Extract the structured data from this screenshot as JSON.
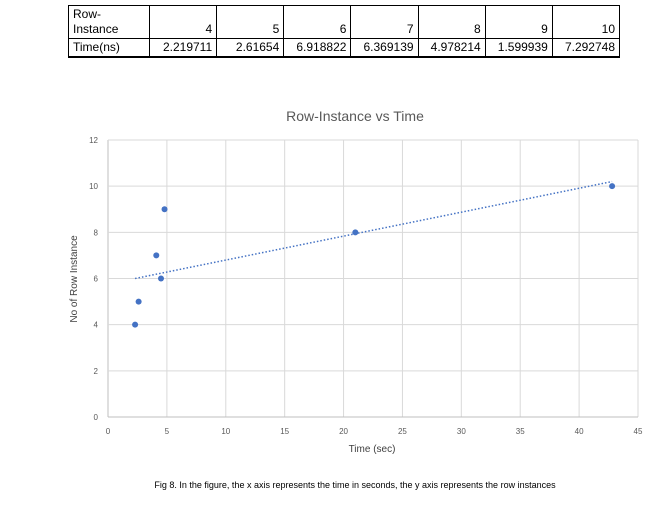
{
  "table": {
    "row_header": "Row-\nInstance",
    "time_header": "Time(ns)",
    "rows": [
      {
        "instance": "4",
        "time": "2.219711"
      },
      {
        "instance": "5",
        "time": "2.61654"
      },
      {
        "instance": "6",
        "time": "6.918822"
      },
      {
        "instance": "7",
        "time": "6.369139"
      },
      {
        "instance": "8",
        "time": "4.978214"
      },
      {
        "instance": "9",
        "time": "1.599939"
      },
      {
        "instance": "10",
        "time": "7.292748"
      }
    ]
  },
  "chart_data": {
    "type": "scatter",
    "title": "Row-Instance vs Time",
    "xlabel": "Time (sec)",
    "ylabel": "No of Row Instance",
    "xlim": [
      0,
      45
    ],
    "ylim": [
      0,
      12
    ],
    "xticks": [
      0,
      5,
      10,
      15,
      20,
      25,
      30,
      35,
      40,
      45
    ],
    "yticks": [
      0,
      2,
      4,
      6,
      8,
      10,
      12
    ],
    "grid": true,
    "marker_color": "#4472C4",
    "trendline_color": "#4472C4",
    "points": [
      {
        "x": 2.3,
        "y": 4
      },
      {
        "x": 2.6,
        "y": 5
      },
      {
        "x": 4.5,
        "y": 6
      },
      {
        "x": 4.1,
        "y": 7
      },
      {
        "x": 21.0,
        "y": 8
      },
      {
        "x": 4.8,
        "y": 9
      },
      {
        "x": 42.8,
        "y": 10
      }
    ],
    "trendline": {
      "x": [
        2.3,
        42.8
      ],
      "y": [
        6.0,
        10.2
      ]
    }
  },
  "caption": "Fig 8. In the figure, the x axis represents the time in seconds, the y axis represents the row instances"
}
